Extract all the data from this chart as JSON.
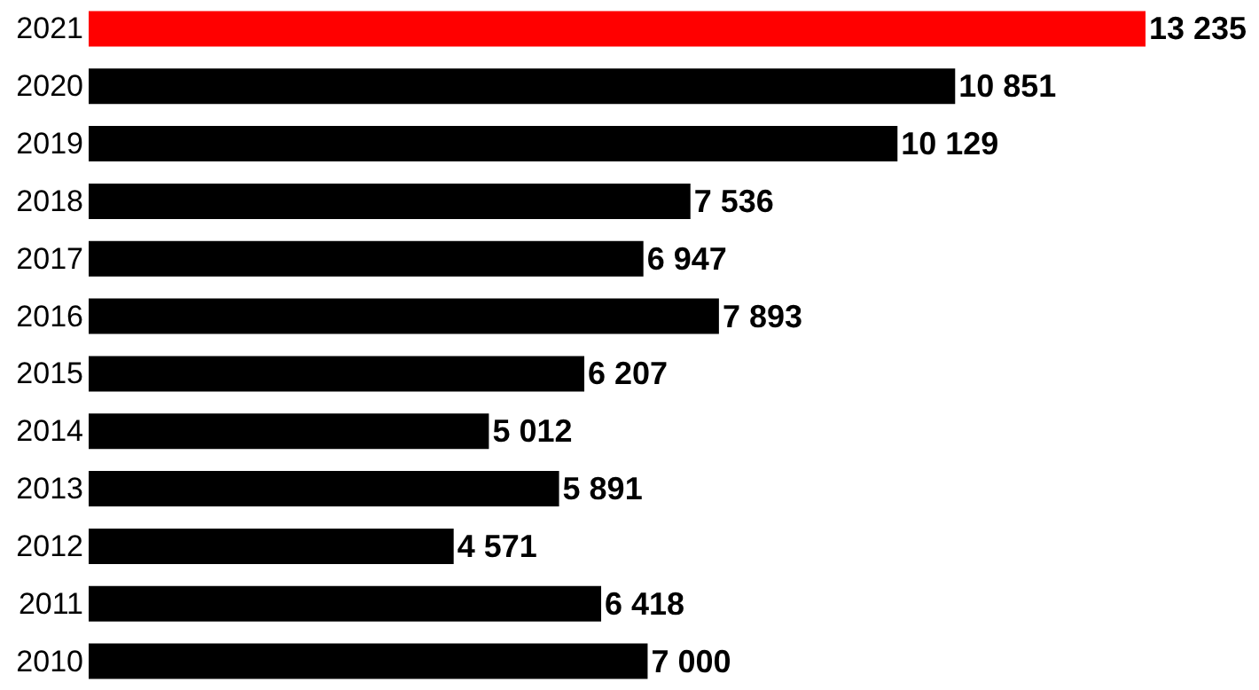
{
  "chart_data": {
    "type": "bar",
    "orientation": "horizontal",
    "tick_labels": "y",
    "categories": [
      "2021",
      "2020",
      "2019",
      "2018",
      "2017",
      "2016",
      "2015",
      "2014",
      "2013",
      "2012",
      "2011",
      "2010"
    ],
    "values": [
      13235,
      10851,
      10129,
      7536,
      6947,
      7893,
      6207,
      5012,
      5891,
      4571,
      6418,
      7000
    ],
    "colors": [
      "#ff0000",
      "#000000",
      "#000000",
      "#000000",
      "#000000",
      "#000000",
      "#000000",
      "#000000",
      "#000000",
      "#000000",
      "#000000",
      "#000000"
    ],
    "value_labels": [
      "13 235",
      "10 851",
      "10 129",
      "7 536",
      "6 947",
      "7 893",
      "6 207",
      "5 012",
      "5 891",
      "4 571",
      "6 418",
      "7 000"
    ],
    "data_labels": true
  }
}
